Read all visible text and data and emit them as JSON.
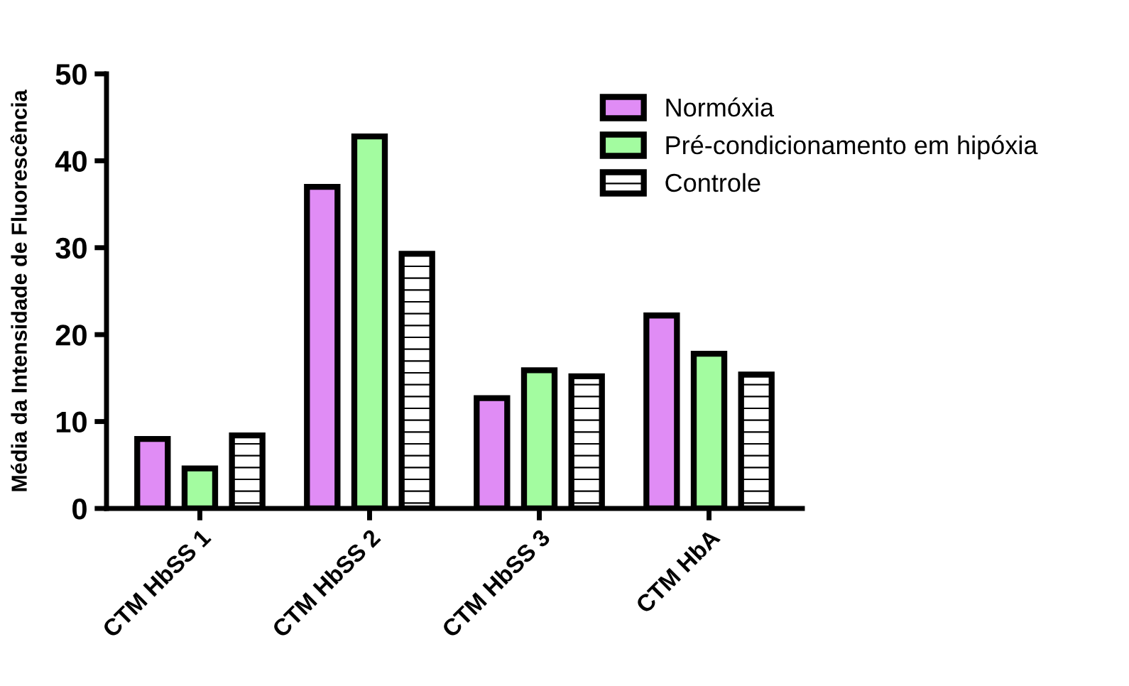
{
  "chart_data": {
    "type": "bar",
    "ylabel": "Média da Intensidade de Fluorescência",
    "categories": [
      "CTM HbSS 1",
      "CTM HbSS 2",
      "CTM HbSS 3",
      "CTM HbA"
    ],
    "series": [
      {
        "name": "Normóxia",
        "color": "#e08cf5",
        "values": [
          8.0,
          37.0,
          12.7,
          22.2
        ]
      },
      {
        "name": "Pré-condicionamento em hipóxia",
        "color": "#a3fca0",
        "values": [
          4.6,
          42.8,
          15.9,
          17.8
        ]
      },
      {
        "name": "Controle",
        "color": "#ffffff",
        "values": [
          8.4,
          29.3,
          15.2,
          15.4
        ]
      }
    ],
    "ylim": [
      0,
      50
    ],
    "yticks": [
      0,
      10,
      20,
      30,
      40,
      50
    ],
    "grid": false,
    "legend": "top right"
  }
}
